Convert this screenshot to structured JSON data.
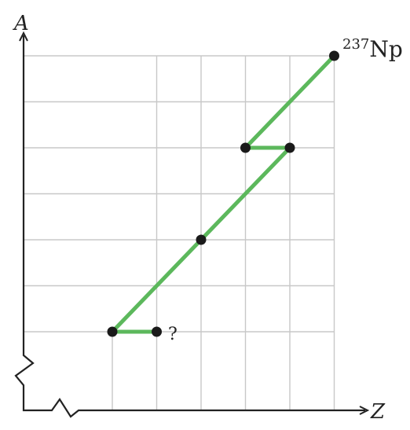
{
  "axes": {
    "x_label": "Z",
    "y_label": "A"
  },
  "labels": {
    "top_isotope_mass": "237",
    "top_isotope_symbol": "Np",
    "unknown_marker": "?"
  },
  "colors": {
    "path": "#5cb85c",
    "grid": "#c8c8c8",
    "axis": "#222222",
    "point": "#1a1a1a"
  },
  "decay_chain": {
    "points": [
      {
        "z_step": 7,
        "a_step": 8
      },
      {
        "z_step": 5,
        "a_step": 6
      },
      {
        "z_step": 6,
        "a_step": 6
      },
      {
        "z_step": 4,
        "a_step": 4
      },
      {
        "z_step": 2,
        "a_step": 2
      },
      {
        "z_step": 3,
        "a_step": 2
      }
    ]
  }
}
